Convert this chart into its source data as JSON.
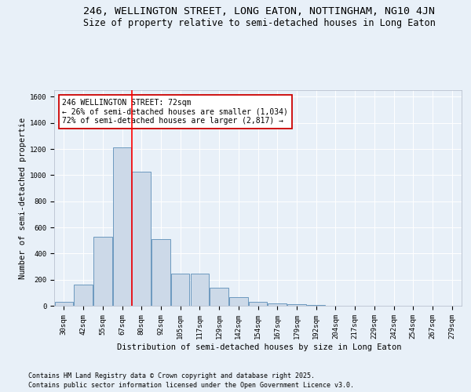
{
  "title": "246, WELLINGTON STREET, LONG EATON, NOTTINGHAM, NG10 4JN",
  "subtitle": "Size of property relative to semi-detached houses in Long Eaton",
  "xlabel": "Distribution of semi-detached houses by size in Long Eaton",
  "ylabel": "Number of semi-detached propertie",
  "bin_labels": [
    "30sqm",
    "42sqm",
    "55sqm",
    "67sqm",
    "80sqm",
    "92sqm",
    "105sqm",
    "117sqm",
    "129sqm",
    "142sqm",
    "154sqm",
    "167sqm",
    "179sqm",
    "192sqm",
    "204sqm",
    "217sqm",
    "229sqm",
    "242sqm",
    "254sqm",
    "267sqm",
    "279sqm"
  ],
  "bar_values": [
    30,
    165,
    530,
    1215,
    1025,
    510,
    245,
    245,
    140,
    65,
    30,
    20,
    10,
    5,
    2,
    2,
    1,
    0,
    0,
    0,
    0
  ],
  "bar_color": "#ccd9e8",
  "bar_edge_color": "#5b8db8",
  "red_line_index": 3.5,
  "annotation_text": "246 WELLINGTON STREET: 72sqm\n← 26% of semi-detached houses are smaller (1,034)\n72% of semi-detached houses are larger (2,817) →",
  "annotation_box_color": "#ffffff",
  "annotation_box_edge": "#cc0000",
  "ylim": [
    0,
    1650
  ],
  "yticks": [
    0,
    200,
    400,
    600,
    800,
    1000,
    1200,
    1400,
    1600
  ],
  "footer_line1": "Contains HM Land Registry data © Crown copyright and database right 2025.",
  "footer_line2": "Contains public sector information licensed under the Open Government Licence v3.0.",
  "bg_color": "#e8f0f8",
  "plot_bg_color": "#e8f0f8",
  "grid_color": "#ffffff",
  "title_fontsize": 9.5,
  "subtitle_fontsize": 8.5,
  "label_fontsize": 7.5,
  "tick_fontsize": 6.5,
  "annotation_fontsize": 7,
  "footer_fontsize": 6
}
